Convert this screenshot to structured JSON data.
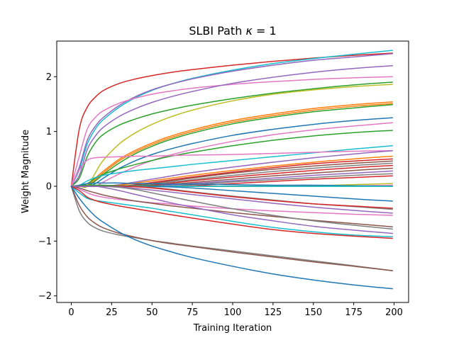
{
  "chart_data": {
    "type": "line",
    "title": "SLBI Path κ = 1",
    "title_parts": {
      "prefix": "SLBI Path ",
      "symbol": "κ",
      "suffix": " = 1"
    },
    "xlabel": "Training Iteration",
    "ylabel": "Weight Magnitude",
    "xlim": [
      -9,
      209
    ],
    "ylim": [
      -2.12,
      2.65
    ],
    "xticks": [
      0,
      25,
      50,
      75,
      100,
      125,
      150,
      175,
      200
    ],
    "yticks": [
      -2,
      -1,
      0,
      1,
      2
    ],
    "xtick_labels": [
      "0",
      "25",
      "50",
      "75",
      "100",
      "125",
      "150",
      "175",
      "200"
    ],
    "ytick_labels": [
      "−2",
      "−1",
      "0",
      "1",
      "2"
    ],
    "grid": false,
    "legend": "none",
    "color_cycle": [
      "#1f77b4",
      "#ff7f0e",
      "#2ca02c",
      "#d62728",
      "#9467bd",
      "#8c564b",
      "#e377c2",
      "#7f7f7f",
      "#bcbd22",
      "#17becf"
    ],
    "x": [
      0,
      5,
      10,
      15,
      20,
      30,
      40,
      50,
      60,
      75,
      100,
      125,
      150,
      175,
      199
    ],
    "series": [
      {
        "color": "#d62728",
        "values": [
          0,
          1.05,
          1.45,
          1.63,
          1.75,
          1.88,
          1.96,
          2.02,
          2.07,
          2.13,
          2.21,
          2.28,
          2.34,
          2.39,
          2.43
        ]
      },
      {
        "color": "#17becf",
        "values": [
          0,
          0.3,
          0.78,
          1.05,
          1.22,
          1.45,
          1.62,
          1.75,
          1.85,
          1.97,
          2.12,
          2.24,
          2.33,
          2.41,
          2.48
        ]
      },
      {
        "color": "#9467bd",
        "values": [
          0,
          0.35,
          0.85,
          1.1,
          1.26,
          1.48,
          1.64,
          1.76,
          1.85,
          1.96,
          2.1,
          2.21,
          2.3,
          2.36,
          2.42
        ]
      },
      {
        "color": "#e377c2",
        "values": [
          0,
          0.55,
          1.05,
          1.26,
          1.38,
          1.52,
          1.61,
          1.68,
          1.73,
          1.79,
          1.86,
          1.91,
          1.95,
          1.98,
          2.0
        ]
      },
      {
        "color": "#9467bd",
        "values": [
          0,
          0.2,
          0.68,
          0.92,
          1.08,
          1.28,
          1.42,
          1.53,
          1.62,
          1.73,
          1.88,
          1.99,
          2.08,
          2.15,
          2.2
        ]
      },
      {
        "color": "#2ca02c",
        "values": [
          0,
          0.15,
          0.55,
          0.8,
          0.95,
          1.12,
          1.23,
          1.32,
          1.39,
          1.48,
          1.6,
          1.7,
          1.78,
          1.85,
          1.9
        ]
      },
      {
        "color": "#bcbd22",
        "values": [
          0,
          0,
          0,
          0.25,
          0.48,
          0.78,
          0.98,
          1.13,
          1.25,
          1.39,
          1.56,
          1.68,
          1.76,
          1.82,
          1.86
        ]
      },
      {
        "color": "#ff7f0e",
        "values": [
          0,
          0,
          0.02,
          0.15,
          0.28,
          0.5,
          0.66,
          0.79,
          0.9,
          1.03,
          1.2,
          1.32,
          1.42,
          1.49,
          1.54
        ]
      },
      {
        "color": "#ff7f0e",
        "values": [
          0,
          0,
          0,
          0.12,
          0.25,
          0.47,
          0.63,
          0.76,
          0.87,
          1.0,
          1.17,
          1.29,
          1.39,
          1.46,
          1.51
        ]
      },
      {
        "color": "#2ca02c",
        "values": [
          0,
          0,
          0,
          0.1,
          0.22,
          0.43,
          0.6,
          0.73,
          0.84,
          0.97,
          1.14,
          1.26,
          1.36,
          1.43,
          1.49
        ]
      },
      {
        "color": "#1f77b4",
        "values": [
          0,
          0,
          0,
          0.05,
          0.15,
          0.33,
          0.47,
          0.58,
          0.67,
          0.78,
          0.93,
          1.04,
          1.13,
          1.2,
          1.25
        ]
      },
      {
        "color": "#e377c2",
        "values": [
          0,
          0,
          0,
          0,
          0.08,
          0.23,
          0.36,
          0.47,
          0.56,
          0.67,
          0.82,
          0.94,
          1.03,
          1.1,
          1.16
        ]
      },
      {
        "color": "#2ca02c",
        "values": [
          0,
          0,
          0.05,
          0.15,
          0.22,
          0.32,
          0.4,
          0.47,
          0.54,
          0.62,
          0.74,
          0.84,
          0.92,
          0.98,
          1.02
        ]
      },
      {
        "color": "#17becf",
        "values": [
          0,
          0.02,
          0.1,
          0.16,
          0.2,
          0.25,
          0.29,
          0.32,
          0.35,
          0.4,
          0.47,
          0.54,
          0.61,
          0.68,
          0.74
        ]
      },
      {
        "color": "#e377c2",
        "values": [
          0,
          0.3,
          0.48,
          0.52,
          0.53,
          0.54,
          0.55,
          0.55,
          0.56,
          0.57,
          0.58,
          0.6,
          0.62,
          0.64,
          0.65
        ]
      },
      {
        "color": "#9467bd",
        "values": [
          0,
          0,
          0,
          0,
          0,
          0.03,
          0.08,
          0.13,
          0.18,
          0.25,
          0.35,
          0.44,
          0.52,
          0.59,
          0.65
        ]
      },
      {
        "color": "#ff7f0e",
        "values": [
          0,
          0,
          0,
          0,
          0,
          0.02,
          0.06,
          0.1,
          0.14,
          0.2,
          0.29,
          0.37,
          0.44,
          0.5,
          0.55
        ]
      },
      {
        "color": "#d62728",
        "values": [
          0,
          0,
          0,
          0,
          0,
          0,
          0.03,
          0.07,
          0.11,
          0.17,
          0.26,
          0.34,
          0.41,
          0.46,
          0.5
        ]
      },
      {
        "color": "#8c564b",
        "values": [
          0,
          0,
          0,
          0,
          0,
          0,
          0.02,
          0.05,
          0.09,
          0.15,
          0.24,
          0.31,
          0.37,
          0.42,
          0.46
        ]
      },
      {
        "color": "#7f7f7f",
        "values": [
          0,
          0,
          0,
          0,
          0,
          0,
          0.01,
          0.03,
          0.07,
          0.12,
          0.2,
          0.27,
          0.33,
          0.38,
          0.42
        ]
      },
      {
        "color": "#d62728",
        "values": [
          0,
          0,
          0,
          0,
          0,
          0,
          0,
          0.02,
          0.05,
          0.1,
          0.17,
          0.23,
          0.29,
          0.34,
          0.38
        ]
      },
      {
        "color": "#8c564b",
        "values": [
          0,
          0,
          0,
          0,
          0,
          0,
          0,
          0.01,
          0.03,
          0.07,
          0.13,
          0.19,
          0.24,
          0.29,
          0.33
        ]
      },
      {
        "color": "#9467bd",
        "values": [
          0,
          0,
          0,
          0,
          0,
          0,
          0,
          0,
          0.02,
          0.05,
          0.1,
          0.15,
          0.2,
          0.24,
          0.28
        ]
      },
      {
        "color": "#7f7f7f",
        "values": [
          0,
          0,
          0,
          0,
          0,
          0,
          0,
          0,
          0,
          0.03,
          0.08,
          0.12,
          0.16,
          0.2,
          0.23
        ]
      },
      {
        "color": "#d62728",
        "values": [
          0,
          0,
          0,
          0,
          0,
          0,
          0,
          0,
          0,
          0.01,
          0.05,
          0.09,
          0.13,
          0.16,
          0.19
        ]
      },
      {
        "color": "#bcbd22",
        "values": [
          0,
          0,
          0,
          0,
          0,
          0,
          0,
          0,
          0,
          0,
          0,
          0,
          0.01,
          0.03,
          0.05
        ]
      },
      {
        "color": "#e377c2",
        "values": [
          0,
          0,
          0,
          0,
          0,
          0,
          0,
          0,
          0,
          0,
          0,
          0,
          0,
          0.01,
          0.02
        ]
      },
      {
        "color": "#1f77b4",
        "values": [
          0,
          0.02,
          0.05,
          0.06,
          0.06,
          0.06,
          0.05,
          0.05,
          0.04,
          0.04,
          0.03,
          0.02,
          0.02,
          0.01,
          0.0
        ]
      },
      {
        "color": "#2ca02c",
        "values": [
          0,
          0.01,
          0.02,
          0.02,
          0.02,
          0.01,
          0.01,
          0.01,
          0.0,
          0.0,
          0.0,
          0.0,
          0.0,
          0.0,
          0.0
        ]
      },
      {
        "color": "#17becf",
        "values": [
          0,
          0,
          0,
          0,
          0,
          0,
          0,
          0,
          0,
          0,
          0,
          0,
          0,
          0,
          0
        ]
      },
      {
        "color": "#1f77b4",
        "values": [
          0,
          0,
          0,
          0,
          0,
          0,
          0,
          0,
          -0.01,
          -0.03,
          -0.08,
          -0.13,
          -0.18,
          -0.23,
          -0.27
        ]
      },
      {
        "color": "#7f7f7f",
        "values": [
          0,
          0,
          0,
          0,
          0,
          0,
          0,
          -0.02,
          -0.05,
          -0.1,
          -0.18,
          -0.25,
          -0.32,
          -0.37,
          -0.42
        ]
      },
      {
        "color": "#d62728",
        "values": [
          0,
          0,
          0,
          0,
          0,
          0,
          -0.01,
          -0.03,
          -0.06,
          -0.11,
          -0.19,
          -0.26,
          -0.32,
          -0.36,
          -0.4
        ]
      },
      {
        "color": "#9467bd",
        "values": [
          0,
          0,
          0,
          0,
          0,
          -0.01,
          -0.04,
          -0.07,
          -0.1,
          -0.15,
          -0.23,
          -0.31,
          -0.38,
          -0.44,
          -0.49
        ]
      },
      {
        "color": "#e377c2",
        "values": [
          0,
          -0.05,
          -0.12,
          -0.17,
          -0.2,
          -0.24,
          -0.27,
          -0.3,
          -0.32,
          -0.36,
          -0.41,
          -0.45,
          -0.48,
          -0.51,
          -0.53
        ]
      },
      {
        "color": "#8c564b",
        "values": [
          0,
          -0.03,
          -0.08,
          -0.12,
          -0.16,
          -0.22,
          -0.27,
          -0.31,
          -0.35,
          -0.4,
          -0.48,
          -0.55,
          -0.62,
          -0.68,
          -0.74
        ]
      },
      {
        "color": "#7f7f7f",
        "values": [
          0,
          0,
          0,
          0,
          0,
          -0.02,
          -0.06,
          -0.12,
          -0.18,
          -0.27,
          -0.41,
          -0.53,
          -0.63,
          -0.71,
          -0.78
        ]
      },
      {
        "color": "#9467bd",
        "values": [
          0,
          0,
          0,
          0,
          -0.02,
          -0.08,
          -0.15,
          -0.22,
          -0.29,
          -0.38,
          -0.52,
          -0.63,
          -0.73,
          -0.8,
          -0.86
        ]
      },
      {
        "color": "#17becf",
        "values": [
          0,
          -0.12,
          -0.22,
          -0.26,
          -0.28,
          -0.32,
          -0.36,
          -0.4,
          -0.45,
          -0.52,
          -0.64,
          -0.75,
          -0.83,
          -0.89,
          -0.92
        ]
      },
      {
        "color": "#d62728",
        "values": [
          0,
          -0.08,
          -0.2,
          -0.26,
          -0.3,
          -0.36,
          -0.41,
          -0.46,
          -0.51,
          -0.58,
          -0.69,
          -0.79,
          -0.86,
          -0.91,
          -0.95
        ]
      },
      {
        "color": "#7f7f7f",
        "values": [
          0,
          -0.45,
          -0.66,
          -0.76,
          -0.82,
          -0.89,
          -0.94,
          -0.99,
          -1.03,
          -1.09,
          -1.18,
          -1.27,
          -1.36,
          -1.45,
          -1.54
        ]
      },
      {
        "color": "#8c564b",
        "values": [
          0,
          -0.35,
          -0.56,
          -0.68,
          -0.76,
          -0.86,
          -0.93,
          -0.99,
          -1.04,
          -1.1,
          -1.2,
          -1.29,
          -1.38,
          -1.46,
          -1.54
        ]
      },
      {
        "color": "#1f77b4",
        "values": [
          0,
          -0.22,
          -0.4,
          -0.55,
          -0.66,
          -0.84,
          -0.98,
          -1.09,
          -1.18,
          -1.3,
          -1.46,
          -1.6,
          -1.71,
          -1.8,
          -1.87
        ]
      }
    ]
  }
}
